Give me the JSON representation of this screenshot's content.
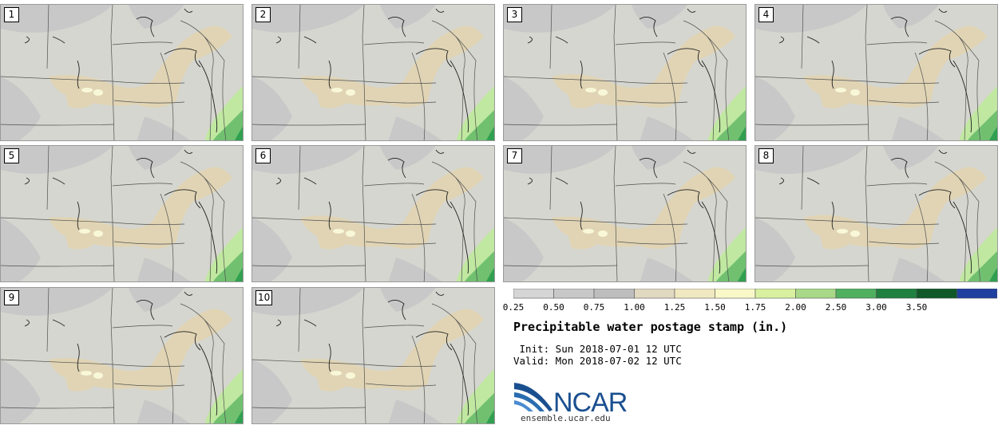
{
  "panels": [
    {
      "label": "1"
    },
    {
      "label": "2"
    },
    {
      "label": "3"
    },
    {
      "label": "4"
    },
    {
      "label": "5"
    },
    {
      "label": "6"
    },
    {
      "label": "7"
    },
    {
      "label": "8"
    },
    {
      "label": "9"
    },
    {
      "label": "10"
    }
  ],
  "colorbar": {
    "ticks": [
      "0.25",
      "0.50",
      "0.75",
      "1.00",
      "1.25",
      "1.50",
      "1.75",
      "2.00",
      "2.50",
      "3.00",
      "3.50"
    ],
    "colors": [
      "#d5d5d5",
      "#c8c8c8",
      "#bdbdbd",
      "#e0d8c0",
      "#f0e8c0",
      "#f8f8c8",
      "#d8f0a0",
      "#a8d888",
      "#50b060",
      "#208040",
      "#105828",
      "#2040a0"
    ]
  },
  "title": "Precipitable water postage stamp (in.)",
  "init": " Init: Sun 2018-07-01 12 UTC",
  "valid": "Valid: Mon 2018-07-02 12 UTC",
  "logo": {
    "text": "NCAR",
    "site": "ensemble.ucar.edu"
  },
  "map_colors": {
    "low": "#c8c8c8",
    "base": "#d6d6d0",
    "tan": "#e0d4b4",
    "pale": "#f8f8d8",
    "light_green": "#c0e8a0",
    "green": "#70c070",
    "dark_green": "#30a050"
  }
}
